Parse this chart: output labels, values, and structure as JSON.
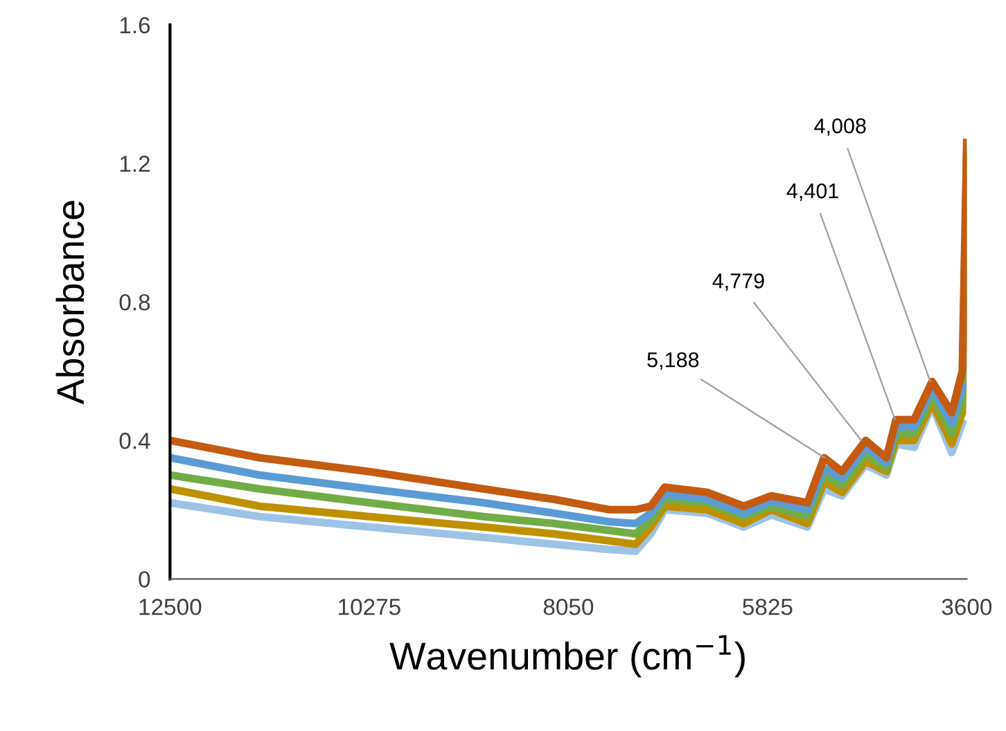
{
  "chart_data": {
    "type": "line",
    "xlabel": "Wavenumber (cm$^{−1}$)",
    "ylabel": "Absorbance",
    "x": [
      12500,
      11500,
      10275,
      9000,
      8213,
      7594,
      7300,
      7129,
      6974,
      6500,
      6092,
      5783,
      5380,
      5194,
      4993,
      4730,
      4498,
      4390,
      4188,
      3987,
      3768,
      3650,
      3600
    ],
    "series": [
      {
        "color": "#9dc3e6",
        "values": [
          0.22,
          0.18,
          0.15,
          0.12,
          0.1,
          0.085,
          0.08,
          0.13,
          0.2,
          0.19,
          0.15,
          0.185,
          0.15,
          0.26,
          0.24,
          0.33,
          0.3,
          0.39,
          0.38,
          0.5,
          0.365,
          0.45,
          null
        ]
      },
      {
        "color": "#bf9000",
        "values": [
          0.26,
          0.21,
          0.18,
          0.15,
          0.13,
          0.11,
          0.1,
          0.15,
          0.21,
          0.2,
          0.16,
          0.2,
          0.16,
          0.28,
          0.25,
          0.34,
          0.31,
          0.4,
          0.4,
          0.51,
          0.39,
          0.48,
          1.21
        ]
      },
      {
        "color": "#70ad47",
        "values": [
          0.3,
          0.26,
          0.22,
          0.18,
          0.16,
          0.14,
          0.13,
          0.17,
          0.23,
          0.22,
          0.18,
          0.21,
          0.18,
          0.3,
          0.27,
          0.36,
          0.32,
          0.42,
          0.42,
          0.53,
          0.42,
          0.52,
          1.23
        ]
      },
      {
        "color": "#5b9bd5",
        "values": [
          0.35,
          0.3,
          0.26,
          0.22,
          0.19,
          0.165,
          0.16,
          0.19,
          0.245,
          0.23,
          0.19,
          0.225,
          0.2,
          0.32,
          0.29,
          0.38,
          0.335,
          0.44,
          0.44,
          0.55,
          0.45,
          0.555,
          null
        ]
      },
      {
        "color": "#c55a11",
        "values": [
          0.4,
          0.35,
          0.31,
          0.26,
          0.23,
          0.2,
          0.2,
          0.21,
          0.265,
          0.25,
          0.21,
          0.24,
          0.22,
          0.35,
          0.31,
          0.4,
          0.35,
          0.46,
          0.46,
          0.57,
          0.48,
          0.6,
          1.26
        ]
      }
    ],
    "xlim": [
      12500,
      3600
    ],
    "xticks": [
      12500,
      10275,
      8050,
      5825,
      3600
    ],
    "ylim": [
      0,
      1.6
    ],
    "yticks": [
      0,
      0.4,
      0.8,
      1.2,
      1.6
    ],
    "grid": false,
    "legend": false,
    "line_style": "solid",
    "marker": "none",
    "annotations": [
      {
        "text": "5,188",
        "x": 5188,
        "y": 0.35
      },
      {
        "text": "4,779",
        "x": 4779,
        "y": 0.4
      },
      {
        "text": "4,401",
        "x": 4401,
        "y": 0.46
      },
      {
        "text": "4,008",
        "x": 4008,
        "y": 0.57
      }
    ]
  }
}
